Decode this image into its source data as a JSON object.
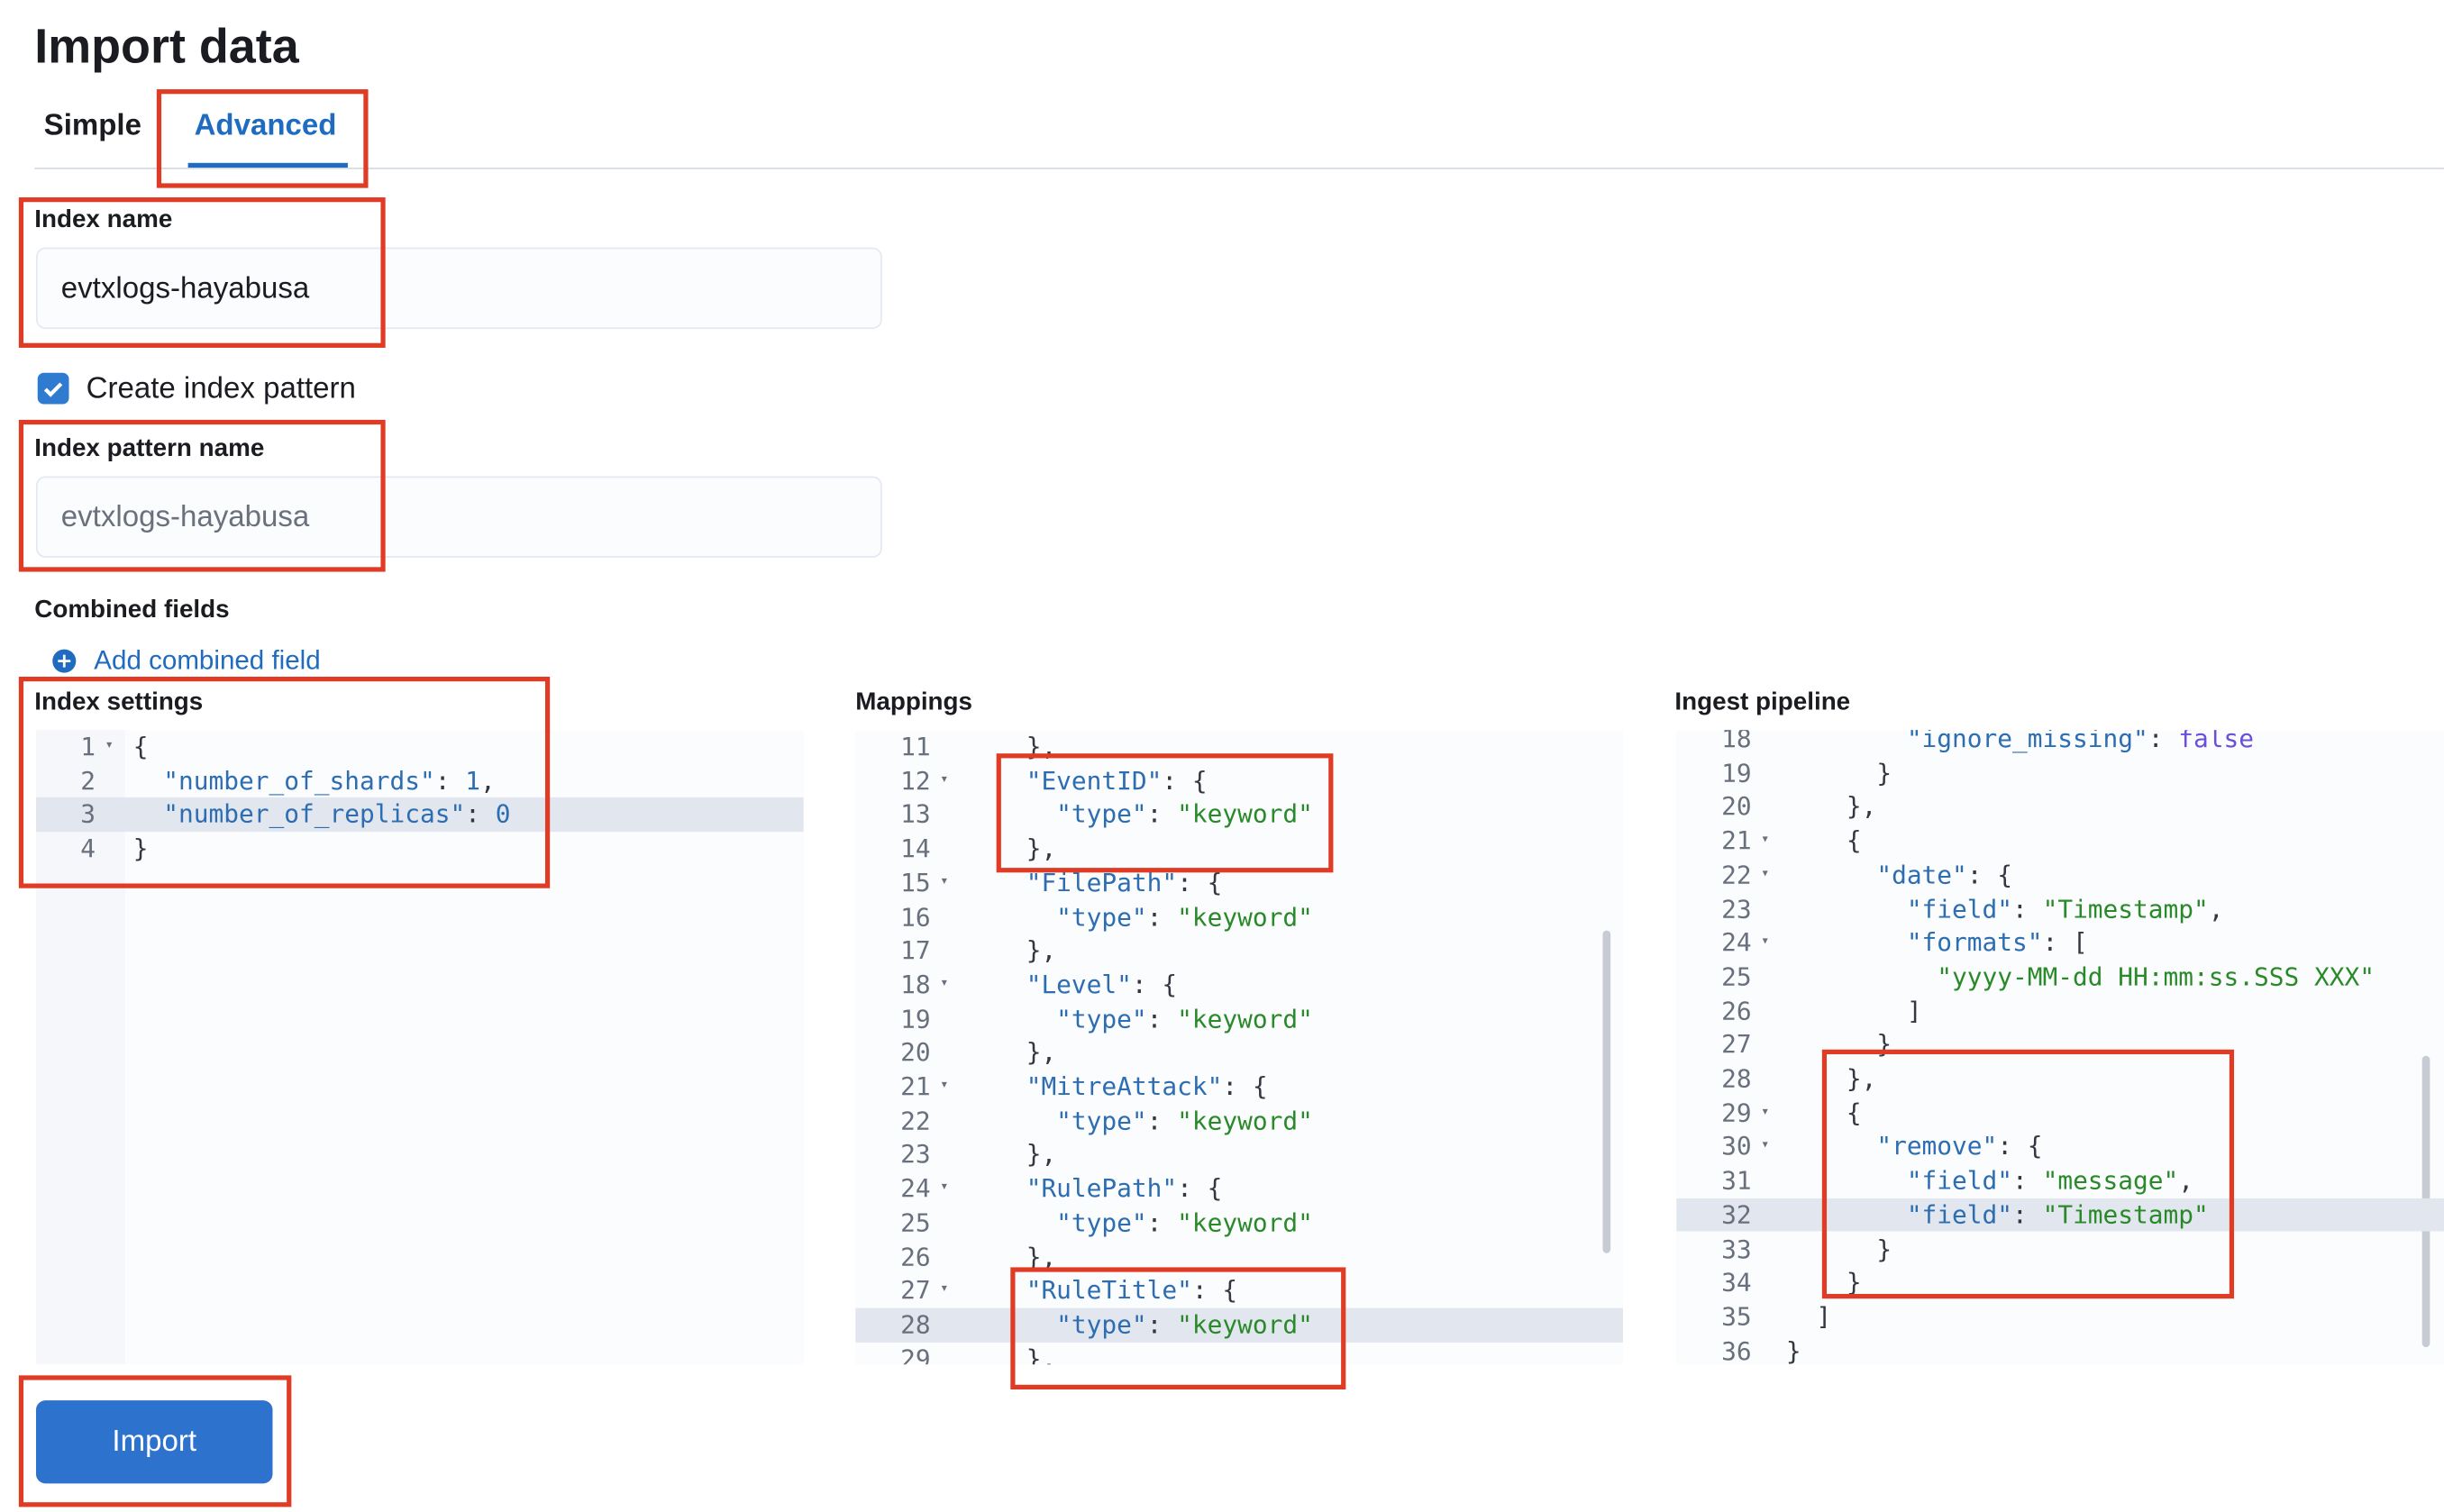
{
  "header": {
    "title": "Import data"
  },
  "tabs": [
    {
      "label": "Simple",
      "active": false
    },
    {
      "label": "Advanced",
      "active": true
    }
  ],
  "form": {
    "index_name": {
      "label": "Index name",
      "value": "evtxlogs-hayabusa"
    },
    "create_index_pattern": {
      "label": "Create index pattern",
      "checked": true
    },
    "index_pattern_name": {
      "label": "Index pattern name",
      "placeholder": "evtxlogs-hayabusa"
    },
    "combined_fields": {
      "label": "Combined fields",
      "link": "Add combined field"
    }
  },
  "editors": [
    {
      "label": "Index settings",
      "active_line": 3,
      "lines": [
        {
          "number": 1,
          "text": "{"
        },
        {
          "number": 2,
          "text": "  \"number_of_shards\": 1,"
        },
        {
          "number": 3,
          "text": "  \"number_of_replicas\": 0"
        },
        {
          "number": 4,
          "text": "}"
        }
      ]
    },
    {
      "label": "Mappings",
      "active_line": 28,
      "lines": [
        {
          "number": 11,
          "text": "},"
        },
        {
          "number": 12,
          "text": "\"EventID\": {"
        },
        {
          "number": 13,
          "text": "  \"type\": \"keyword\""
        },
        {
          "number": 14,
          "text": "},"
        },
        {
          "number": 15,
          "text": "\"FilePath\": {"
        },
        {
          "number": 16,
          "text": "  \"type\": \"keyword\""
        },
        {
          "number": 17,
          "text": "},"
        },
        {
          "number": 18,
          "text": "\"Level\": {"
        },
        {
          "number": 19,
          "text": "  \"type\": \"keyword\""
        },
        {
          "number": 20,
          "text": "},"
        },
        {
          "number": 21,
          "text": "\"MitreAttack\": {"
        },
        {
          "number": 22,
          "text": "  \"type\": \"keyword\""
        },
        {
          "number": 23,
          "text": "},"
        },
        {
          "number": 24,
          "text": "\"RulePath\": {"
        },
        {
          "number": 25,
          "text": "  \"type\": \"keyword\""
        },
        {
          "number": 26,
          "text": "},"
        },
        {
          "number": 27,
          "text": "\"RuleTitle\": {"
        },
        {
          "number": 28,
          "text": "  \"type\": \"keyword\""
        },
        {
          "number": 29,
          "text": "},"
        }
      ]
    },
    {
      "label": "Ingest pipeline",
      "active_line": 32,
      "lines": [
        {
          "number": 18,
          "text": "        \"ignore_missing\": false"
        },
        {
          "number": 19,
          "text": "      }"
        },
        {
          "number": 20,
          "text": "    },"
        },
        {
          "number": 21,
          "text": "    {"
        },
        {
          "number": 22,
          "text": "      \"date\": {"
        },
        {
          "number": 23,
          "text": "        \"field\": \"Timestamp\","
        },
        {
          "number": 24,
          "text": "        \"formats\": ["
        },
        {
          "number": 25,
          "text": "          \"yyyy-MM-dd HH:mm:ss.SSS XXX\""
        },
        {
          "number": 26,
          "text": "        ]"
        },
        {
          "number": 27,
          "text": "      }"
        },
        {
          "number": 28,
          "text": "    },"
        },
        {
          "number": 29,
          "text": "    {"
        },
        {
          "number": 30,
          "text": "      \"remove\": {"
        },
        {
          "number": 31,
          "text": "        \"field\": \"message\","
        },
        {
          "number": 32,
          "text": "        \"field\": \"Timestamp\""
        },
        {
          "number": 33,
          "text": "      }"
        },
        {
          "number": 34,
          "text": "    }"
        },
        {
          "number": 35,
          "text": "  ]"
        },
        {
          "number": 36,
          "text": "}"
        }
      ]
    }
  ],
  "import_button": "Import"
}
